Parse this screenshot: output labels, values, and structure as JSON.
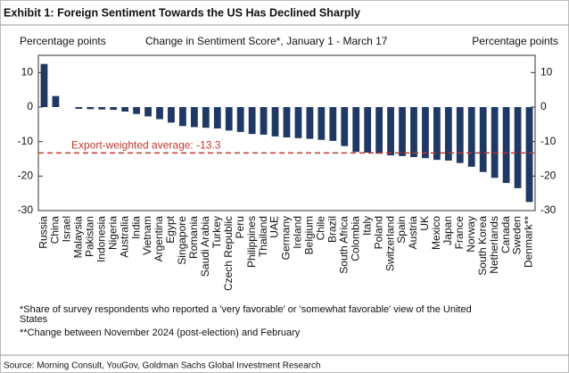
{
  "chart_data": {
    "type": "bar",
    "title": "Exhibit 1: Foreign Sentiment Towards the US Has Declined Sharply",
    "subtitle": "Change in Sentiment Score*, January 1 - March 17",
    "y_label": "Percentage points",
    "y2_label": "Percentage points",
    "categories": [
      "Russia",
      "China",
      "Israel",
      "Malaysia",
      "Pakistan",
      "Indonesia",
      "Nigeria",
      "Australia",
      "India",
      "Vietnam",
      "Argentina",
      "Egypt",
      "Singapore",
      "Romania",
      "Saudi Arabia",
      "Turkey",
      "Czech Republic",
      "Peru",
      "Philippines",
      "Thailand",
      "UAE",
      "Germany",
      "Ireland",
      "Belgium",
      "Chile",
      "Brazil",
      "South Africa",
      "Colombia",
      "Italy",
      "Poland",
      "Switzerland",
      "Spain",
      "Austria",
      "UK",
      "Mexico",
      "Japan",
      "France",
      "Norway",
      "South Korea",
      "Netherlands",
      "Canada",
      "Sweden",
      "Denmark**"
    ],
    "values": [
      12.5,
      3.2,
      0,
      -0.5,
      -0.6,
      -0.7,
      -0.8,
      -1.3,
      -2,
      -2.7,
      -3.5,
      -4.5,
      -5.5,
      -5.8,
      -6,
      -6.2,
      -6.8,
      -7.2,
      -7.8,
      -8,
      -8.5,
      -8.8,
      -9,
      -9.2,
      -9.5,
      -9.8,
      -11.3,
      -13,
      -13.2,
      -13.5,
      -14,
      -14.2,
      -14.5,
      -14.8,
      -15.3,
      -15.5,
      -16.2,
      -17.3,
      -18.8,
      -20.5,
      -22,
      -23.5,
      -27.5
    ],
    "color": "#1f3864",
    "ylim": [
      -30,
      15
    ],
    "yticks": [
      -30,
      -20,
      -10,
      0,
      10
    ],
    "reference_line": {
      "value": -13.3,
      "label": "Export-weighted average: -13.3",
      "color": "#c0392b"
    },
    "footnotes": [
      "*Share of survey respondents who reported a 'very favorable' or 'somewhat favorable' view of the United",
      "States",
      "**Change between November 2024 (post-election) and February"
    ],
    "source": "Source: Morning Consult, YouGov, Goldman Sachs Global Investment Research"
  }
}
